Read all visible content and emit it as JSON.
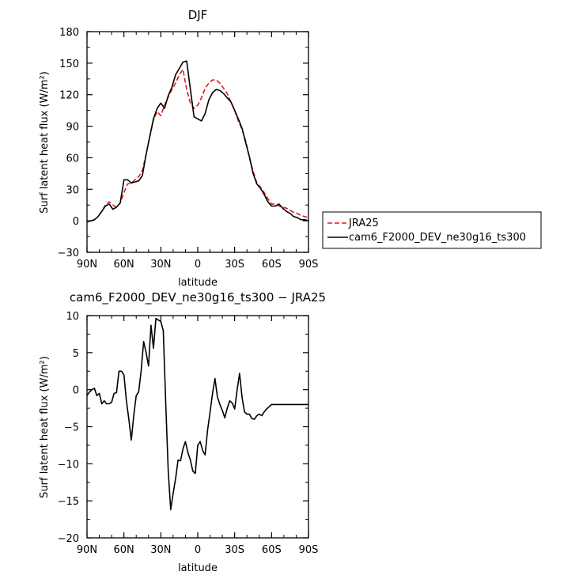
{
  "chart_data": [
    {
      "type": "line",
      "title": "DJF",
      "xlabel": "latitude",
      "ylabel": "Surf latent heat flux (W/m²)",
      "xlim": [
        90,
        -90
      ],
      "ylim": [
        -30,
        180
      ],
      "xticks": [
        90,
        60,
        30,
        0,
        -30,
        -60,
        -90
      ],
      "xtick_labels": [
        "90N",
        "60N",
        "30N",
        "0",
        "30S",
        "60S",
        "90S"
      ],
      "yticks": [
        -30,
        0,
        30,
        60,
        90,
        120,
        150,
        180
      ],
      "ytick_labels": [
        "−30",
        "0",
        "30",
        "60",
        "90",
        "120",
        "150",
        "180"
      ],
      "legend_position": "outside-right",
      "series": [
        {
          "name": "JRA25",
          "color": "#e41a1c",
          "dash": "dashed",
          "x": [
            90,
            87,
            84,
            81,
            78,
            75,
            72,
            69,
            66,
            63,
            60,
            57,
            54,
            51,
            48,
            45,
            42,
            39,
            36,
            33,
            30,
            27,
            24,
            21,
            18,
            15,
            12,
            9,
            6,
            3,
            0,
            -3,
            -6,
            -9,
            -12,
            -15,
            -18,
            -21,
            -24,
            -27,
            -30,
            -33,
            -36,
            -39,
            -42,
            -45,
            -48,
            -51,
            -54,
            -57,
            -60,
            -63,
            -66,
            -69,
            -72,
            -75,
            -78,
            -81,
            -84,
            -87,
            -90
          ],
          "values": [
            -1,
            0,
            1,
            4,
            9,
            15,
            18,
            15,
            13,
            17,
            27,
            35,
            36,
            39,
            42,
            48,
            63,
            80,
            96,
            104,
            100,
            110,
            118,
            125,
            131,
            139,
            144,
            125,
            112,
            107,
            110,
            117,
            126,
            131,
            134,
            134,
            131,
            126,
            121,
            113,
            105,
            95,
            87,
            76,
            60,
            47,
            36,
            32,
            27,
            21,
            16,
            16,
            14,
            13,
            12,
            10,
            8,
            7,
            5,
            4,
            3
          ]
        },
        {
          "name": "cam6_F2000_DEV_ne30g16_ts300",
          "color": "#000000",
          "dash": "solid",
          "x": [
            90,
            87,
            84,
            81,
            78,
            75,
            72,
            69,
            66,
            63,
            60,
            57,
            54,
            51,
            48,
            45,
            42,
            39,
            36,
            33,
            30,
            27,
            24,
            21,
            18,
            15,
            12,
            9,
            6,
            3,
            0,
            -3,
            -6,
            -9,
            -12,
            -15,
            -18,
            -21,
            -24,
            -27,
            -30,
            -33,
            -36,
            -39,
            -42,
            -45,
            -48,
            -51,
            -54,
            -57,
            -60,
            -63,
            -66,
            -69,
            -72,
            -75,
            -78,
            -81,
            -84,
            -87,
            -90
          ],
          "values": [
            -1,
            0,
            1,
            4,
            9,
            14,
            16,
            11,
            13,
            17,
            39,
            39,
            36,
            37,
            38,
            43,
            63,
            80,
            97,
            107,
            112,
            107,
            119,
            127,
            139,
            145,
            151,
            152,
            125,
            99,
            97,
            95,
            102,
            115,
            122,
            125,
            124,
            121,
            117,
            113,
            105,
            97,
            88,
            74,
            61,
            45,
            35,
            31,
            25,
            18,
            14,
            14,
            16,
            12,
            9,
            7,
            4,
            3,
            1,
            1,
            0
          ]
        }
      ]
    },
    {
      "type": "line",
      "title": "cam6_F2000_DEV_ne30g16_ts300 − JRA25",
      "xlabel": "latitude",
      "ylabel": "Surf latent heat flux (W/m²)",
      "xlim": [
        90,
        -90
      ],
      "ylim": [
        -20,
        10
      ],
      "xticks": [
        90,
        60,
        30,
        0,
        -30,
        -60,
        -90
      ],
      "xtick_labels": [
        "90N",
        "60N",
        "30N",
        "0",
        "30S",
        "60S",
        "90S"
      ],
      "yticks": [
        -20,
        -15,
        -10,
        -5,
        0,
        5,
        10
      ],
      "ytick_labels": [
        "−20",
        "−15",
        "−10",
        "−5",
        "0",
        "5",
        "10"
      ],
      "series": [
        {
          "color": "#000000",
          "dash": "solid",
          "x": [
            90,
            88,
            86,
            84,
            82,
            80,
            78,
            76,
            74,
            72,
            70,
            68,
            66,
            64,
            62,
            60,
            58,
            56,
            54,
            52,
            50,
            48,
            46,
            44,
            42,
            40,
            38,
            36,
            34,
            32,
            30,
            28,
            26,
            24,
            22,
            20,
            18,
            16,
            14,
            12,
            10,
            8,
            6,
            4,
            2,
            0,
            -2,
            -4,
            -6,
            -8,
            -10,
            -12,
            -14,
            -16,
            -18,
            -20,
            -22,
            -24,
            -26,
            -28,
            -30,
            -32,
            -34,
            -36,
            -38,
            -40,
            -42,
            -44,
            -46,
            -48,
            -50,
            -52,
            -54,
            -56,
            -58,
            -60,
            -62,
            -64,
            -66,
            -68,
            -70,
            -72,
            -74,
            -76,
            -78,
            -80,
            -82,
            -84,
            -86,
            -88,
            -90
          ],
          "values": [
            -0.8,
            -0.3,
            0.0,
            0.2,
            -0.8,
            -0.5,
            -1.9,
            -1.5,
            -1.9,
            -1.9,
            -1.7,
            -0.5,
            -0.4,
            2.5,
            2.5,
            2.0,
            -1.5,
            -4.0,
            -6.8,
            -3.5,
            -0.8,
            -0.3,
            2.5,
            6.5,
            5.0,
            3.2,
            8.7,
            5.6,
            9.6,
            9.4,
            9.2,
            8.0,
            -2.0,
            -11.0,
            -16.2,
            -14.0,
            -12.0,
            -9.5,
            -9.6,
            -8.0,
            -7.0,
            -8.5,
            -9.5,
            -11.0,
            -11.3,
            -7.5,
            -7.0,
            -8.2,
            -8.8,
            -5.5,
            -3.0,
            -0.5,
            1.5,
            -1.0,
            -2.0,
            -2.8,
            -3.8,
            -2.5,
            -1.5,
            -1.8,
            -2.6,
            0.0,
            2.2,
            -1.0,
            -3.0,
            -3.3,
            -3.3,
            -3.9,
            -4.0,
            -3.5,
            -3.3,
            -3.5,
            -3.0,
            -2.6,
            -2.3,
            -2.0,
            -2.0,
            -2.0,
            -2.0,
            -2.0,
            -2.0,
            -2.0,
            -2.0,
            -2.0,
            -2.0,
            -2.0,
            -2.0,
            -2.0,
            -2.0,
            -2.0,
            -2.0
          ]
        }
      ]
    }
  ]
}
